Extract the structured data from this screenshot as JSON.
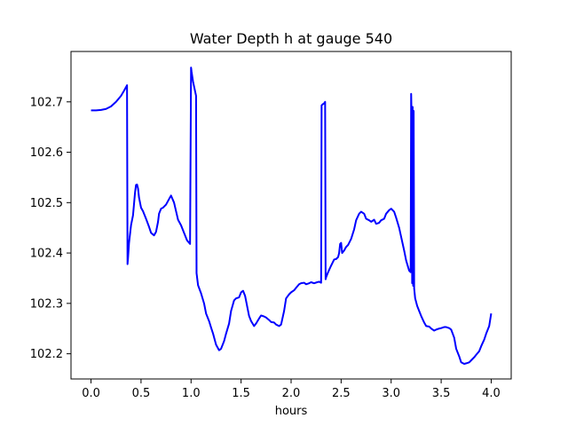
{
  "chart_data": {
    "type": "line",
    "title": "Water Depth h at gauge 540",
    "xlabel": "hours",
    "ylabel": "",
    "xlim": [
      -0.2,
      4.2
    ],
    "ylim": [
      102.15,
      102.8
    ],
    "xticks": [
      0.0,
      0.5,
      1.0,
      1.5,
      2.0,
      2.5,
      3.0,
      3.5,
      4.0
    ],
    "xtick_labels": [
      "0.0",
      "0.5",
      "1.0",
      "1.5",
      "2.0",
      "2.5",
      "3.0",
      "3.5",
      "4.0"
    ],
    "yticks": [
      102.2,
      102.3,
      102.4,
      102.5,
      102.6,
      102.7
    ],
    "ytick_labels": [
      "102.2",
      "102.3",
      "102.4",
      "102.5",
      "102.6",
      "102.7"
    ],
    "grid": false,
    "series": [
      {
        "color": "#0000ff",
        "x": [
          0.0,
          0.05,
          0.1,
          0.15,
          0.2,
          0.25,
          0.3,
          0.33,
          0.36,
          0.365,
          0.37,
          0.38,
          0.4,
          0.42,
          0.44,
          0.45,
          0.46,
          0.47,
          0.48,
          0.5,
          0.52,
          0.55,
          0.58,
          0.6,
          0.63,
          0.65,
          0.67,
          0.68,
          0.7,
          0.72,
          0.75,
          0.78,
          0.8,
          0.83,
          0.85,
          0.87,
          0.9,
          0.93,
          0.96,
          0.99,
          1.0,
          1.005,
          1.02,
          1.05,
          1.055,
          1.07,
          1.1,
          1.13,
          1.15,
          1.18,
          1.2,
          1.22,
          1.25,
          1.28,
          1.3,
          1.33,
          1.35,
          1.38,
          1.4,
          1.43,
          1.45,
          1.48,
          1.5,
          1.52,
          1.54,
          1.56,
          1.58,
          1.6,
          1.63,
          1.65,
          1.68,
          1.7,
          1.73,
          1.75,
          1.78,
          1.8,
          1.83,
          1.85,
          1.88,
          1.9,
          1.93,
          1.95,
          1.98,
          2.0,
          2.03,
          2.05,
          2.08,
          2.1,
          2.13,
          2.15,
          2.18,
          2.2,
          2.23,
          2.26,
          2.28,
          2.3,
          2.305,
          2.31,
          2.315,
          2.33,
          2.34,
          2.345,
          2.35,
          2.37,
          2.4,
          2.43,
          2.45,
          2.47,
          2.48,
          2.49,
          2.5,
          2.51,
          2.53,
          2.55,
          2.57,
          2.6,
          2.63,
          2.65,
          2.68,
          2.7,
          2.73,
          2.75,
          2.78,
          2.8,
          2.83,
          2.85,
          2.88,
          2.9,
          2.93,
          2.95,
          2.98,
          3.0,
          3.03,
          3.05,
          3.08,
          3.1,
          3.13,
          3.15,
          3.18,
          3.195,
          3.2,
          3.205,
          3.21,
          3.215,
          3.22,
          3.225,
          3.23,
          3.235,
          3.24,
          3.26,
          3.28,
          3.3,
          3.33,
          3.35,
          3.38,
          3.4,
          3.43,
          3.45,
          3.48,
          3.5,
          3.53,
          3.55,
          3.58,
          3.6,
          3.63,
          3.65,
          3.68,
          3.7,
          3.73,
          3.75,
          3.78,
          3.8,
          3.83,
          3.85,
          3.88,
          3.9,
          3.93,
          3.95,
          3.98,
          4.0
        ],
        "y": [
          102.683,
          102.683,
          102.684,
          102.686,
          102.691,
          102.7,
          102.712,
          102.722,
          102.733,
          102.378,
          102.39,
          102.42,
          102.455,
          102.475,
          102.52,
          102.535,
          102.536,
          102.528,
          102.51,
          102.49,
          102.483,
          102.468,
          102.452,
          102.44,
          102.435,
          102.442,
          102.462,
          102.478,
          102.488,
          102.49,
          102.496,
          102.507,
          102.514,
          102.5,
          102.483,
          102.466,
          102.455,
          102.44,
          102.425,
          102.418,
          102.768,
          102.76,
          102.74,
          102.712,
          102.36,
          102.336,
          102.32,
          102.3,
          102.28,
          102.265,
          102.252,
          102.24,
          102.218,
          102.207,
          102.21,
          102.225,
          102.24,
          102.26,
          102.285,
          102.306,
          102.31,
          102.312,
          102.322,
          102.325,
          102.315,
          102.295,
          102.275,
          102.265,
          102.255,
          102.26,
          102.27,
          102.276,
          102.274,
          102.272,
          102.267,
          102.263,
          102.262,
          102.258,
          102.255,
          102.258,
          102.285,
          102.31,
          102.318,
          102.322,
          102.326,
          102.331,
          102.338,
          102.34,
          102.341,
          102.338,
          102.34,
          102.342,
          102.34,
          102.342,
          102.343,
          102.341,
          102.693,
          102.694,
          102.695,
          102.697,
          102.7,
          102.348,
          102.352,
          102.362,
          102.375,
          102.387,
          102.388,
          102.392,
          102.4,
          102.418,
          102.42,
          102.4,
          102.405,
          102.412,
          102.416,
          102.428,
          102.447,
          102.465,
          102.478,
          102.482,
          102.478,
          102.468,
          102.465,
          102.462,
          102.466,
          102.458,
          102.46,
          102.465,
          102.468,
          102.478,
          102.485,
          102.488,
          102.482,
          102.47,
          102.45,
          102.432,
          102.405,
          102.385,
          102.365,
          102.362,
          102.716,
          102.66,
          102.34,
          102.69,
          102.335,
          102.682,
          102.33,
          102.32,
          102.31,
          102.295,
          102.285,
          102.275,
          102.262,
          102.255,
          102.254,
          102.25,
          102.246,
          102.248,
          102.25,
          102.251,
          102.253,
          102.253,
          102.251,
          102.248,
          102.232,
          102.21,
          102.195,
          102.183,
          102.18,
          102.181,
          102.183,
          102.187,
          102.193,
          102.198,
          102.205,
          102.215,
          102.228,
          102.24,
          102.255,
          102.28
        ]
      }
    ]
  }
}
